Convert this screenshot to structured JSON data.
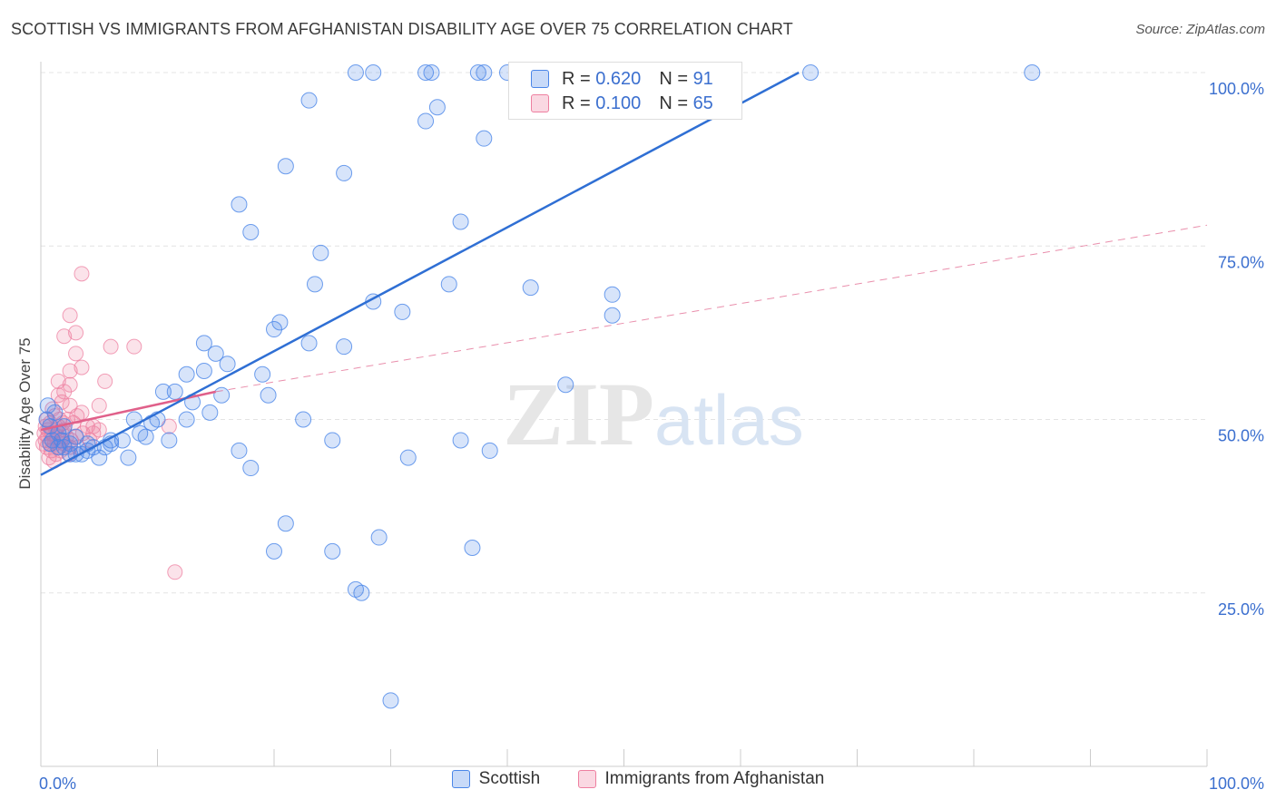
{
  "chart_data": {
    "type": "scatter",
    "title": "SCOTTISH VS IMMIGRANTS FROM AFGHANISTAN DISABILITY AGE OVER 75 CORRELATION CHART",
    "source": "Source: ZipAtlas.com",
    "ylabel": "Disability Age Over 75",
    "xlabel": "",
    "x_tick_labels": [
      "0.0%",
      "100.0%"
    ],
    "y_tick_labels": [
      "100.0%",
      "75.0%",
      "50.0%",
      "25.0%"
    ],
    "xlim": [
      0,
      100
    ],
    "ylim": [
      0,
      100
    ],
    "watermark": "ZIPatlas",
    "legend": {
      "position": "bottom",
      "items": [
        "Scottish",
        "Immigrants from Afghanistan"
      ]
    },
    "stats": [
      {
        "r_label": "R = ",
        "r_value": "0.620",
        "n_label": "N = ",
        "n_value": "91"
      },
      {
        "r_label": "R = ",
        "r_value": "0.100",
        "n_label": "N = ",
        "n_value": "65"
      }
    ],
    "colors": {
      "scottish": "#4a86e8",
      "afghanistan": "#ee7fa0",
      "blue_line": "#2f6fd4",
      "pink_line": "#e0608a"
    },
    "series": [
      {
        "name": "Scottish",
        "trend": {
          "x": [
            0,
            65
          ],
          "y": [
            42,
            100
          ]
        },
        "points": [
          [
            27,
            100
          ],
          [
            28.5,
            100
          ],
          [
            33,
            100
          ],
          [
            33.5,
            100
          ],
          [
            37.5,
            100
          ],
          [
            38,
            100
          ],
          [
            40,
            100
          ],
          [
            59,
            100
          ],
          [
            66,
            100
          ],
          [
            85,
            100
          ],
          [
            23,
            96
          ],
          [
            33,
            93
          ],
          [
            34,
            95
          ],
          [
            38,
            90.5
          ],
          [
            21,
            86.5
          ],
          [
            26,
            85.5
          ],
          [
            17,
            81
          ],
          [
            18,
            77
          ],
          [
            36,
            78.5
          ],
          [
            24,
            74
          ],
          [
            23.5,
            69.5
          ],
          [
            28.5,
            67
          ],
          [
            31,
            65.5
          ],
          [
            35,
            69.5
          ],
          [
            42,
            69
          ],
          [
            49,
            68
          ],
          [
            49,
            65
          ],
          [
            20,
            63
          ],
          [
            20.5,
            64
          ],
          [
            23,
            61
          ],
          [
            26,
            60.5
          ],
          [
            14,
            61
          ],
          [
            15,
            59.5
          ],
          [
            16,
            58
          ],
          [
            12.5,
            56.5
          ],
          [
            14,
            57
          ],
          [
            19,
            56.5
          ],
          [
            10.5,
            54
          ],
          [
            11.5,
            54
          ],
          [
            13,
            52.5
          ],
          [
            15.5,
            53.5
          ],
          [
            19.5,
            53.5
          ],
          [
            45,
            55
          ],
          [
            8,
            50
          ],
          [
            9.5,
            49.5
          ],
          [
            10,
            50
          ],
          [
            12.5,
            50
          ],
          [
            14.5,
            51
          ],
          [
            22.5,
            50
          ],
          [
            8.5,
            48
          ],
          [
            9,
            47.5
          ],
          [
            11,
            47
          ],
          [
            7,
            47
          ],
          [
            6,
            46.5
          ],
          [
            5.5,
            46
          ],
          [
            4.5,
            46
          ],
          [
            25,
            47
          ],
          [
            36,
            47
          ],
          [
            17,
            45.5
          ],
          [
            18,
            43
          ],
          [
            31.5,
            44.5
          ],
          [
            38.5,
            45.5
          ],
          [
            2,
            46
          ],
          [
            2.5,
            45
          ],
          [
            3,
            45
          ],
          [
            3.5,
            45
          ],
          [
            4,
            45.5
          ],
          [
            5,
            44.5
          ],
          [
            7.5,
            44.5
          ],
          [
            1,
            47
          ],
          [
            1.5,
            48
          ],
          [
            0.8,
            49
          ],
          [
            0.5,
            50
          ],
          [
            1.2,
            51
          ],
          [
            0.6,
            52
          ],
          [
            2,
            49
          ],
          [
            3,
            47.5
          ],
          [
            2.5,
            46.5
          ],
          [
            1.8,
            47
          ],
          [
            21,
            35
          ],
          [
            20,
            31
          ],
          [
            25,
            31
          ],
          [
            29,
            33
          ],
          [
            37,
            31.5
          ],
          [
            27,
            25.5
          ],
          [
            27.5,
            25
          ],
          [
            30,
            9.5
          ],
          [
            0.8,
            46.5
          ],
          [
            1.5,
            46
          ],
          [
            4,
            46.5
          ],
          [
            6,
            47
          ]
        ]
      },
      {
        "name": "Immigrants from Afghanistan",
        "trend": {
          "x": [
            0,
            15
          ],
          "y": [
            48.5,
            54
          ]
        },
        "trend_ext": {
          "x": [
            15,
            100
          ],
          "y": [
            54,
            78
          ]
        },
        "points": [
          [
            3.5,
            71
          ],
          [
            2.5,
            65
          ],
          [
            2,
            62
          ],
          [
            3,
            62.5
          ],
          [
            6,
            60.5
          ],
          [
            8,
            60.5
          ],
          [
            3,
            59.5
          ],
          [
            3.5,
            57.5
          ],
          [
            2.5,
            57
          ],
          [
            1.5,
            55.5
          ],
          [
            2.5,
            55
          ],
          [
            5.5,
            55.5
          ],
          [
            2,
            54
          ],
          [
            1.5,
            53.5
          ],
          [
            1.8,
            52.5
          ],
          [
            2.5,
            52
          ],
          [
            5,
            52
          ],
          [
            1,
            51.5
          ],
          [
            3.5,
            51
          ],
          [
            0.5,
            50
          ],
          [
            0.8,
            49.5
          ],
          [
            1.2,
            50.5
          ],
          [
            4,
            49
          ],
          [
            4.5,
            49
          ],
          [
            1.5,
            49
          ],
          [
            2,
            48.5
          ],
          [
            0.6,
            48.5
          ],
          [
            1,
            48
          ],
          [
            1.4,
            47.5
          ],
          [
            1.8,
            48
          ],
          [
            2.2,
            47.5
          ],
          [
            2.6,
            47
          ],
          [
            3,
            47.5
          ],
          [
            0.4,
            47
          ],
          [
            0.8,
            46.5
          ],
          [
            1.2,
            46.5
          ],
          [
            1.6,
            46
          ],
          [
            2,
            46.5
          ],
          [
            0.5,
            46
          ],
          [
            0.9,
            45.5
          ],
          [
            1.3,
            45
          ],
          [
            1.7,
            45.5
          ],
          [
            2.5,
            46
          ],
          [
            3.2,
            46
          ],
          [
            0.7,
            44.5
          ],
          [
            1.1,
            44
          ],
          [
            4.5,
            48
          ],
          [
            5,
            48.5
          ],
          [
            11,
            49
          ],
          [
            0.3,
            48
          ],
          [
            0.6,
            47.5
          ],
          [
            2.8,
            49.5
          ],
          [
            3.6,
            48
          ],
          [
            1.9,
            49.5
          ],
          [
            1.3,
            48.5
          ],
          [
            0.9,
            48
          ],
          [
            2.3,
            50
          ],
          [
            3.1,
            50.5
          ],
          [
            1.6,
            50
          ],
          [
            11.5,
            28
          ],
          [
            0.4,
            49
          ],
          [
            1.7,
            47
          ],
          [
            2.4,
            45
          ],
          [
            4.2,
            47
          ],
          [
            0.2,
            46.5
          ]
        ]
      }
    ]
  }
}
